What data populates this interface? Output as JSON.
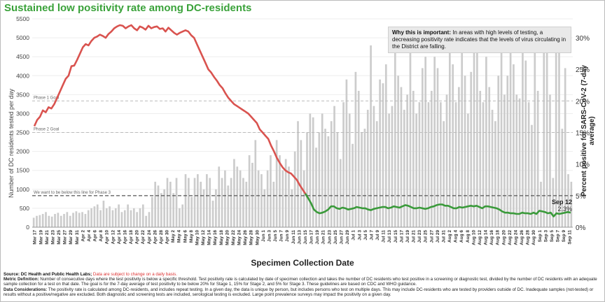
{
  "title": "Sustained low positivity rate among DC-residents",
  "callout": {
    "heading": "Why this is important:",
    "text": "In areas with high levels of testing, a decreasing positivity rate indicates that the levels of virus circulating in the District are falling."
  },
  "footer": {
    "source_label": "Source: DC Health and Public Health Labs;",
    "source_warn": "Data are subject to change on a daily basis.",
    "metric_label": "Metric Definition:",
    "metric_text": "Number of consecutive days where the test positivity is below a specific threshold. Test positivity rate is calculated by date of specimen collection and takes the number of DC residents who test positive in a screening or diagnostic test, divided by the number of DC residents with an adequate sample collection for a test on that date. The goal is for the 7-day average of test positivity to be below 20% for Stage 1, 15% for Stage 2, and 5% for Stage 3. These guidelines are based on CDC and WHO guidance.",
    "considerations_label": "Data Considerations:",
    "considerations_text": "The positivity rate is calculated among DC-residents, and includes repeat testing. In a given day, the data is unique by person, but includes persons who test on multiple days. This may include DC-residents who are tested by providers outside of DC. Inadequate samples (not-tested) or results without a positive/negative are excluded. Both diagnostic and screening tests are included, serological testing is excluded. Large point prevalence surveys may impact the positivity on a given day."
  },
  "latest": {
    "date": "Sep 12",
    "value": "2.3%"
  },
  "chart_data": {
    "type": "bar",
    "title": "Sustained low positivity rate among DC-residents",
    "xlabel": "Specimen Collection Date",
    "ylabel_left": "Number of DC residents tested per day",
    "ylabel_right": "Percent positive for SARS-CoV-2 (7-day average)",
    "y_left_range": [
      0,
      5500
    ],
    "y_right_range": [
      0,
      33
    ],
    "y_left_ticks": [
      "0",
      "500",
      "1000",
      "1500",
      "2000",
      "2500",
      "3000",
      "3500",
      "4000",
      "4500",
      "5000",
      "5500"
    ],
    "y_right_ticks": [
      "0%",
      "5%",
      "10%",
      "15%",
      "20%",
      "25%",
      "30%"
    ],
    "x_tick_labels": [
      "Mar 17",
      "Mar 19",
      "Mar 21",
      "Mar 23",
      "Mar 25",
      "Mar 27",
      "Mar 29",
      "Mar 31",
      "Apr 2",
      "Apr 4",
      "Apr 6",
      "Apr 8",
      "Apr 10",
      "Apr 12",
      "Apr 14",
      "Apr 16",
      "Apr 18",
      "Apr 20",
      "Apr 22",
      "Apr 24",
      "Apr 26",
      "Apr 28",
      "Apr 30",
      "May 2",
      "May 4",
      "May 6",
      "May 8",
      "May 10",
      "May 12",
      "May 14",
      "May 16",
      "May 18",
      "May 20",
      "May 22",
      "May 24",
      "May 26",
      "May 28",
      "May 30",
      "Jun 1",
      "Jun 3",
      "Jun 5",
      "Jun 7",
      "Jun 9",
      "Jun 11",
      "Jun 13",
      "Jun 15",
      "Jun 17",
      "Jun 19",
      "Jun 21",
      "Jun 23",
      "Jun 25",
      "Jun 27",
      "Jun 29",
      "Jul 1",
      "Jul 3",
      "Jul 5",
      "Jul 7",
      "Jul 9",
      "Jul 11",
      "Jul 13",
      "Jul 15",
      "Jul 17",
      "Jul 19",
      "Jul 21",
      "Jul 23",
      "Jul 25",
      "Jul 27",
      "Jul 29",
      "Jul 31",
      "Aug 2",
      "Aug 4",
      "Aug 6",
      "Aug 8",
      "Aug 10",
      "Aug 12",
      "Aug 14",
      "Aug 16",
      "Aug 18",
      "Aug 20",
      "Aug 22",
      "Aug 24",
      "Aug 26",
      "Aug 28",
      "Aug 30",
      "Sep 1",
      "Sep 3",
      "Sep 5",
      "Sep 7",
      "Sep 9",
      "Sep 11"
    ],
    "thresholds": [
      {
        "label": "Phase 1 Goal",
        "value_pct": 20
      },
      {
        "label": "Phase 2 Goal",
        "value_pct": 15
      },
      {
        "label": "We want to be below this line for Phase 3",
        "value_pct": 5
      }
    ],
    "tests_per_day": [
      250,
      300,
      320,
      350,
      400,
      300,
      280,
      350,
      380,
      300,
      350,
      400,
      300,
      380,
      420,
      380,
      400,
      350,
      450,
      500,
      550,
      600,
      450,
      700,
      500,
      550,
      450,
      500,
      600,
      400,
      450,
      600,
      450,
      500,
      400,
      500,
      600,
      300,
      400,
      800,
      1200,
      1100,
      900,
      1000,
      1300,
      1200,
      900,
      1300,
      500,
      600,
      1400,
      1300,
      800,
      1300,
      1400,
      1200,
      1000,
      1400,
      1300,
      700,
      1000,
      1600,
      1300,
      1500,
      1100,
      1300,
      1800,
      1600,
      1500,
      1300,
      1200,
      1900,
      1700,
      2300,
      1500,
      1400,
      1000,
      1500,
      1900,
      1200,
      2300,
      1900,
      1500,
      1800,
      1600,
      1000,
      2000,
      2800,
      2300,
      1500,
      2500,
      3000,
      2900,
      2100,
      2500,
      3000,
      2600,
      2400,
      2800,
      3200,
      2500,
      1800,
      3300,
      3900,
      3000,
      2200,
      4100,
      3600,
      2500,
      2600,
      3100,
      4800,
      3200,
      2800,
      3900,
      3800,
      4300,
      3000,
      3200,
      4700,
      4000,
      3700,
      3100,
      3500,
      4800,
      3600,
      3000,
      3300,
      4200,
      4500,
      3300,
      3600,
      4500,
      4200,
      3300,
      2800,
      3500,
      4800,
      4300,
      3300,
      3700,
      4900,
      4000,
      3000,
      4100,
      4800,
      4700,
      3600,
      3300,
      4500,
      3700,
      3100,
      2800,
      4000,
      4700,
      3500,
      4000,
      4900,
      4300,
      3500,
      3400,
      4700,
      4400,
      3300,
      2700,
      4800,
      3600,
      1200,
      4700,
      4600,
      3500,
      1300,
      4700,
      5200,
      2600,
      4200,
      1400,
      1200
    ],
    "positivity_pct_7day": [
      16.0,
      17.0,
      17.5,
      18.5,
      18.2,
      19.0,
      18.8,
      19.5,
      20.5,
      21.5,
      22.5,
      23.5,
      24.0,
      25.5,
      25.6,
      26.5,
      27.5,
      28.5,
      29.0,
      28.8,
      29.5,
      30.0,
      30.2,
      30.5,
      30.3,
      30.0,
      30.6,
      31.0,
      31.5,
      31.8,
      32.0,
      31.9,
      31.5,
      31.8,
      32.0,
      31.5,
      31.2,
      31.8,
      31.6,
      31.3,
      31.9,
      31.5,
      31.7,
      31.8,
      31.4,
      31.5,
      31.0,
      31.6,
      31.2,
      30.8,
      30.5,
      30.8,
      31.0,
      31.2,
      31.0,
      30.4,
      30.0,
      29.0,
      28.0,
      27.0,
      26.0,
      25.0,
      24.5,
      23.8,
      23.2,
      22.5,
      22.0,
      21.2,
      20.5,
      20.0,
      19.5,
      19.2,
      18.9,
      18.6,
      18.3,
      18.0,
      17.5,
      17.0,
      16.5,
      15.5,
      15.0,
      14.5,
      14.0,
      12.9,
      12.0,
      11.0,
      10.2,
      9.5,
      9.0,
      8.7,
      8.5,
      8.0,
      7.5,
      6.7,
      6.0,
      5.3,
      4.6,
      3.8,
      2.8,
      2.4,
      2.2,
      2.3,
      2.5,
      2.8,
      3.3,
      3.3,
      3.0,
      2.9,
      3.1,
      3.0,
      2.8,
      2.9,
      3.0,
      3.2,
      3.1,
      3.0,
      3.0,
      2.8,
      2.7,
      2.9,
      3.0,
      3.1,
      3.2,
      3.2,
      3.0,
      3.1,
      3.3,
      3.2,
      3.1,
      3.3,
      3.5,
      3.4,
      3.2,
      3.0,
      3.0,
      3.1,
      3.0,
      2.9,
      3.0,
      3.2,
      3.3,
      3.5,
      3.6,
      3.6,
      3.4,
      3.4,
      3.2,
      3.0,
      3.0,
      3.2,
      3.1,
      3.2,
      3.3,
      3.4,
      3.3,
      3.4,
      3.2,
      3.0,
      3.3,
      3.3,
      3.2,
      3.1,
      3.0,
      2.8,
      2.5,
      2.3,
      2.3,
      2.2,
      2.2,
      2.1,
      2.1,
      2.3,
      2.2,
      2.2,
      2.1,
      2.3,
      2.1,
      2.6,
      2.5,
      2.4,
      2.2,
      2.3,
      1.7,
      2.2,
      2.1,
      2.2,
      2.3,
      2.4,
      2.3
    ],
    "colors": {
      "bars": "#cccccc",
      "positivity_above_5": "#d9534f",
      "positivity_below_5": "#3a9a3a",
      "threshold_goal": "#bbbbbb",
      "threshold_phase3": "#555555"
    },
    "grid": true,
    "legend": "none"
  }
}
